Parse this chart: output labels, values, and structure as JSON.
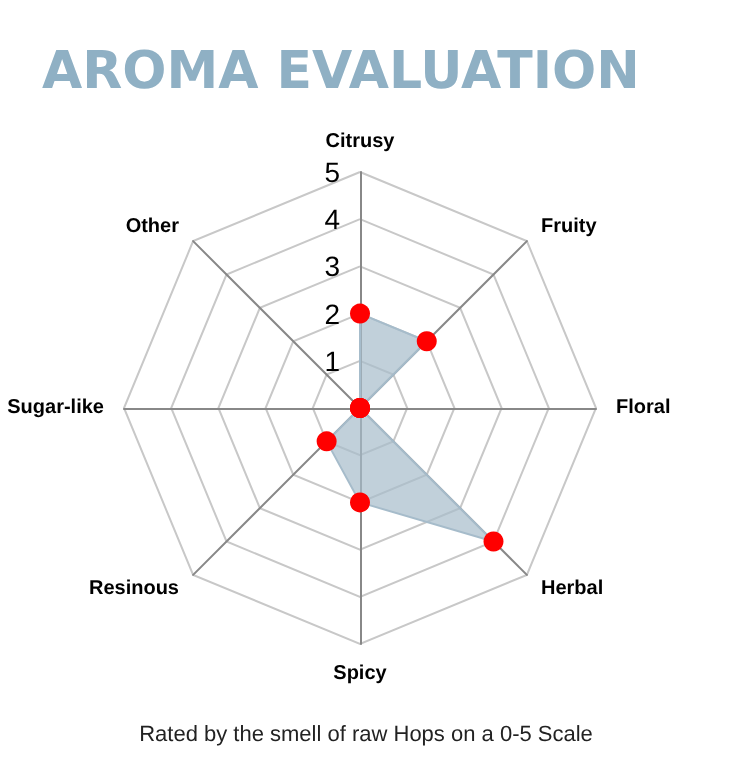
{
  "chart_data": {
    "type": "radar",
    "title": "AROMA EVALUATION",
    "annotations": [
      "Rated by the smell of raw Hops on a 0-5 Scale"
    ],
    "categories": [
      "Citrusy",
      "Fruity",
      "Floral",
      "Herbal",
      "Spicy",
      "Resinous",
      "Sugar-like",
      "Other"
    ],
    "series": [
      {
        "color": "#a6bccb",
        "values": [
          2,
          2,
          0,
          4,
          2,
          1,
          0,
          0
        ]
      }
    ],
    "ylim": [
      0,
      5
    ],
    "yticks": [
      1,
      2,
      3,
      4,
      5
    ],
    "grid": true,
    "marker": "circle"
  }
}
